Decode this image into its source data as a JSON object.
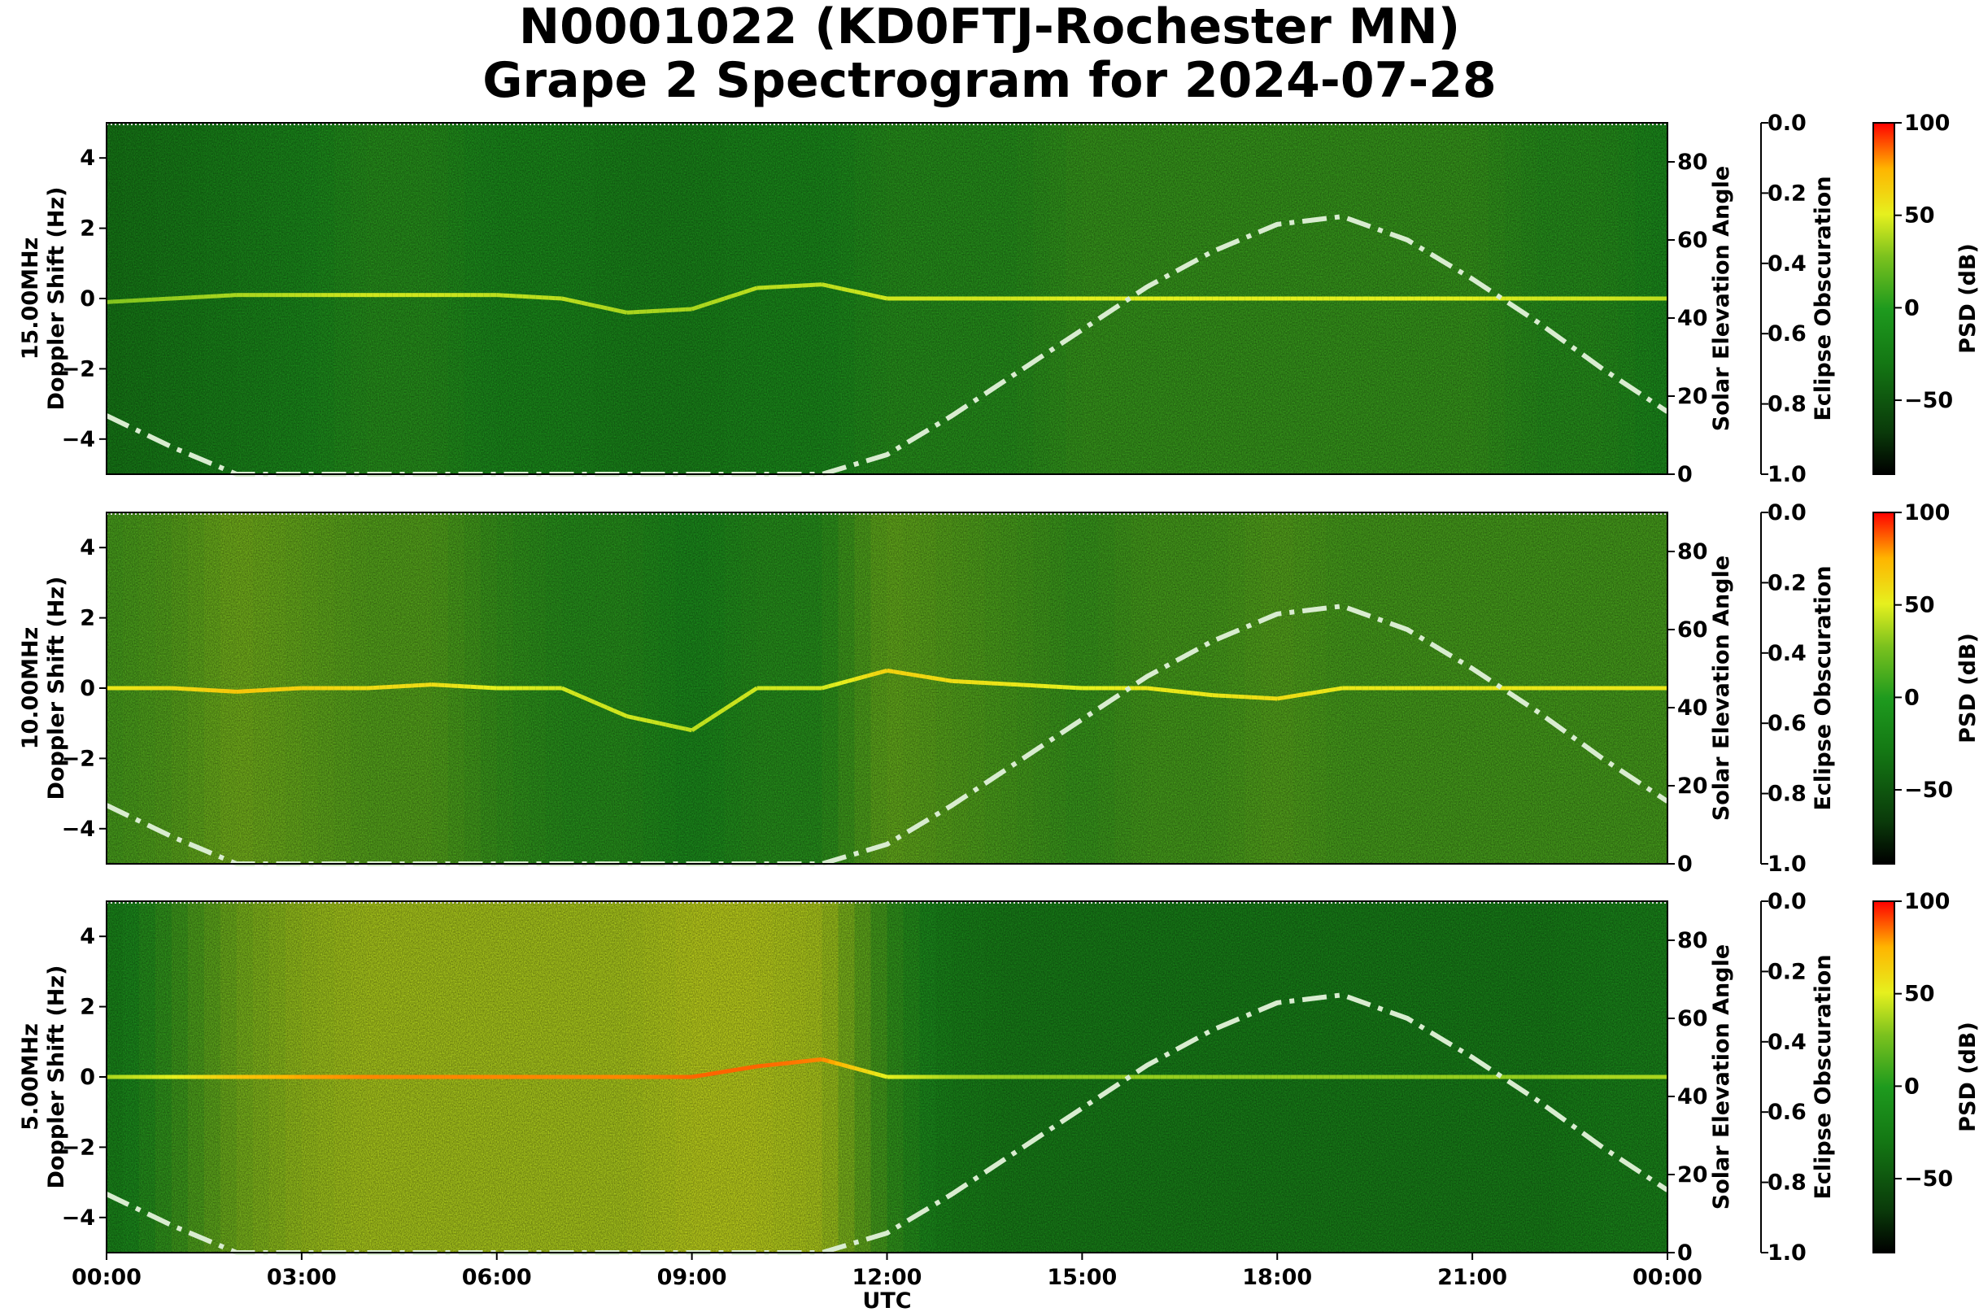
{
  "title": {
    "line1": "N0001022 (KD0FTJ-Rochester MN)",
    "line2": "Grape 2 Spectrogram for 2024-07-28"
  },
  "xaxis": {
    "label": "UTC",
    "ticks": [
      "00:00",
      "03:00",
      "06:00",
      "09:00",
      "12:00",
      "15:00",
      "18:00",
      "21:00",
      "00:00"
    ],
    "range_hours": [
      0,
      24
    ]
  },
  "axis_labels": {
    "doppler": "Doppler Shift (Hz)",
    "elevation": "Solar Elevation Angle",
    "obscuration": "Eclipse Obscuration",
    "psd": "PSD (dB)"
  },
  "ticks": {
    "doppler": [
      "4",
      "2",
      "0",
      "−2",
      "−4"
    ],
    "doppler_values": [
      4,
      2,
      0,
      -2,
      -4
    ],
    "doppler_range": [
      -5,
      5
    ],
    "elevation": [
      "0",
      "20",
      "40",
      "60",
      "80"
    ],
    "elevation_values": [
      0,
      20,
      40,
      60,
      80
    ],
    "elevation_range": [
      0,
      90
    ],
    "obscuration": [
      "0.0",
      "0.2",
      "0.4",
      "0.6",
      "0.8",
      "1.0"
    ],
    "obscuration_values": [
      0.0,
      0.2,
      0.4,
      0.6,
      0.8,
      1.0
    ],
    "psd": [
      "100",
      "50",
      "0",
      "−50"
    ],
    "psd_values": [
      100,
      50,
      0,
      -50
    ],
    "psd_range": [
      -90,
      100
    ]
  },
  "colormap": [
    "#000000",
    "#0a3a0a",
    "#147814",
    "#1e9a1e",
    "#7cc21e",
    "#e6f01e",
    "#ffb400",
    "#ff0000"
  ],
  "chart_data": [
    {
      "type": "heatmap",
      "frequency_label": "15.00MHz",
      "x_hours": [
        0,
        1,
        2,
        3,
        4,
        5,
        6,
        7,
        8,
        9,
        10,
        11,
        12,
        13,
        14,
        15,
        16,
        17,
        18,
        19,
        20,
        21,
        22,
        23,
        24
      ],
      "solar_elevation_deg": [
        15,
        7,
        0,
        0,
        0,
        0,
        0,
        0,
        0,
        0,
        0,
        0,
        5,
        15,
        26,
        37,
        48,
        57,
        64,
        66,
        60,
        50,
        39,
        27,
        16
      ],
      "carrier_doppler_hz": [
        -0.1,
        0.0,
        0.1,
        0.1,
        0.1,
        0.1,
        0.1,
        0.0,
        -0.4,
        -0.3,
        0.3,
        0.4,
        0.0,
        0.0,
        0.0,
        0.0,
        0.0,
        0.0,
        0.0,
        0.0,
        0.0,
        0.0,
        0.0,
        0.0,
        0.0
      ],
      "peak_psd_db": [
        20,
        25,
        30,
        35,
        40,
        40,
        35,
        35,
        30,
        30,
        35,
        35,
        40,
        40,
        40,
        45,
        45,
        45,
        45,
        45,
        45,
        45,
        40,
        40,
        35
      ]
    },
    {
      "type": "heatmap",
      "frequency_label": "10.00MHz",
      "x_hours": [
        0,
        1,
        2,
        3,
        4,
        5,
        6,
        7,
        8,
        9,
        10,
        11,
        12,
        13,
        14,
        15,
        16,
        17,
        18,
        19,
        20,
        21,
        22,
        23,
        24
      ],
      "solar_elevation_deg": [
        15,
        7,
        0,
        0,
        0,
        0,
        0,
        0,
        0,
        0,
        0,
        0,
        5,
        15,
        26,
        37,
        48,
        57,
        64,
        66,
        60,
        50,
        39,
        27,
        16
      ],
      "carrier_doppler_hz": [
        0.0,
        0.0,
        -0.1,
        0.0,
        0.0,
        0.1,
        0.0,
        0.0,
        -0.8,
        -1.2,
        0.0,
        0.0,
        0.5,
        0.2,
        0.1,
        0.0,
        0.0,
        -0.2,
        -0.3,
        0.0,
        0.0,
        0.0,
        0.0,
        0.0,
        0.0
      ],
      "peak_psd_db": [
        50,
        55,
        65,
        60,
        55,
        55,
        45,
        40,
        40,
        35,
        40,
        40,
        60,
        55,
        50,
        45,
        50,
        50,
        55,
        50,
        50,
        50,
        50,
        50,
        50
      ]
    },
    {
      "type": "heatmap",
      "frequency_label": "5.00MHz",
      "x_hours": [
        0,
        1,
        2,
        3,
        4,
        5,
        6,
        7,
        8,
        9,
        10,
        11,
        12,
        13,
        14,
        15,
        16,
        17,
        18,
        19,
        20,
        21,
        22,
        23,
        24
      ],
      "solar_elevation_deg": [
        15,
        7,
        0,
        0,
        0,
        0,
        0,
        0,
        0,
        0,
        0,
        0,
        5,
        15,
        26,
        37,
        48,
        57,
        64,
        66,
        60,
        50,
        39,
        27,
        16
      ],
      "carrier_doppler_hz": [
        0.0,
        0.0,
        0.0,
        0.0,
        0.0,
        0.0,
        0.0,
        0.0,
        0.0,
        0.0,
        0.3,
        0.5,
        0.0,
        0.0,
        0.0,
        0.0,
        0.0,
        0.0,
        0.0,
        0.0,
        0.0,
        0.0,
        0.0,
        0.0,
        0.0
      ],
      "peak_psd_db": [
        30,
        45,
        65,
        75,
        80,
        80,
        80,
        80,
        80,
        85,
        85,
        80,
        45,
        30,
        25,
        25,
        25,
        25,
        25,
        25,
        25,
        25,
        25,
        30,
        30
      ]
    }
  ]
}
